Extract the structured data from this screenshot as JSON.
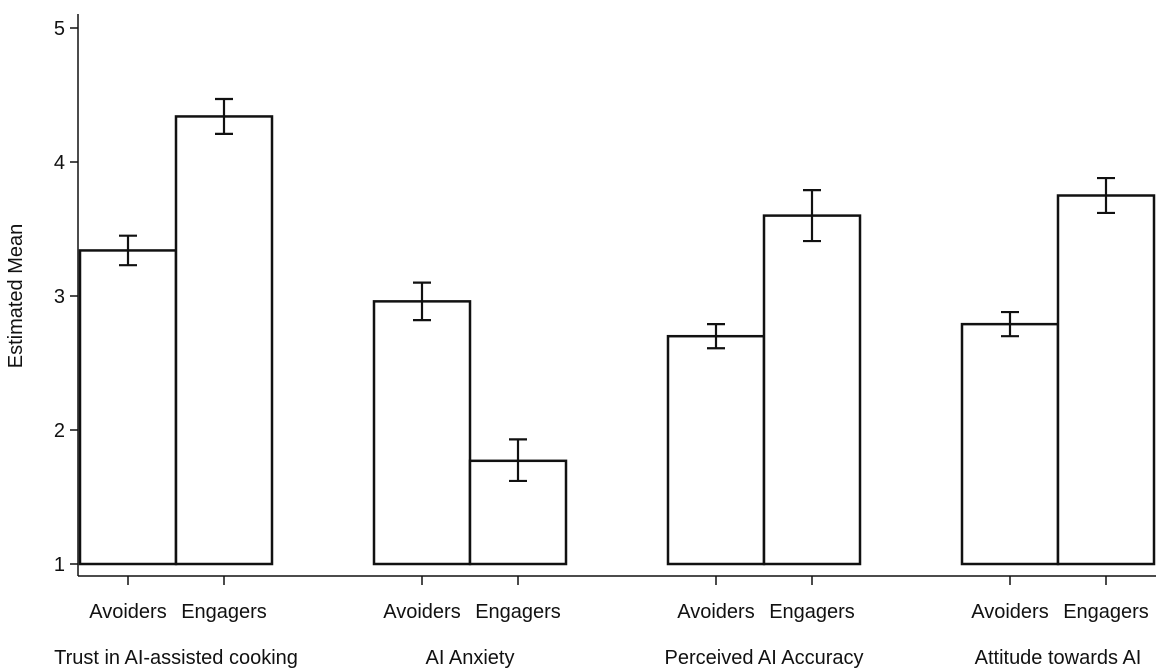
{
  "chart_data": {
    "type": "bar",
    "title": "",
    "xlabel": "",
    "ylabel": "Estimated Mean",
    "ylim": [
      1,
      5
    ],
    "yticks": [
      1,
      2,
      3,
      4,
      5
    ],
    "grid": false,
    "series_names": [
      "Avoiders",
      "Engagers"
    ],
    "groups": [
      {
        "label": "Trust in AI-assisted cooking",
        "bars": [
          {
            "label": "Avoiders",
            "value": 3.34,
            "ci": [
              3.23,
              3.45
            ]
          },
          {
            "label": "Engagers",
            "value": 4.34,
            "ci": [
              4.21,
              4.47
            ]
          }
        ]
      },
      {
        "label": "AI Anxiety",
        "bars": [
          {
            "label": "Avoiders",
            "value": 2.96,
            "ci": [
              2.82,
              3.1
            ]
          },
          {
            "label": "Engagers",
            "value": 1.77,
            "ci": [
              1.62,
              1.93
            ]
          }
        ]
      },
      {
        "label": "Perceived AI Accuracy",
        "bars": [
          {
            "label": "Avoiders",
            "value": 2.7,
            "ci": [
              2.61,
              2.79
            ]
          },
          {
            "label": "Engagers",
            "value": 3.6,
            "ci": [
              3.41,
              3.79
            ]
          }
        ]
      },
      {
        "label": "Attitude towards AI",
        "bars": [
          {
            "label": "Avoiders",
            "value": 2.79,
            "ci": [
              2.7,
              2.88
            ]
          },
          {
            "label": "Engagers",
            "value": 3.75,
            "ci": [
              3.62,
              3.88
            ]
          }
        ]
      }
    ],
    "colors": {
      "bar_fill": "#ffffff",
      "bar_stroke": "#111111",
      "axis": "#111111"
    }
  }
}
